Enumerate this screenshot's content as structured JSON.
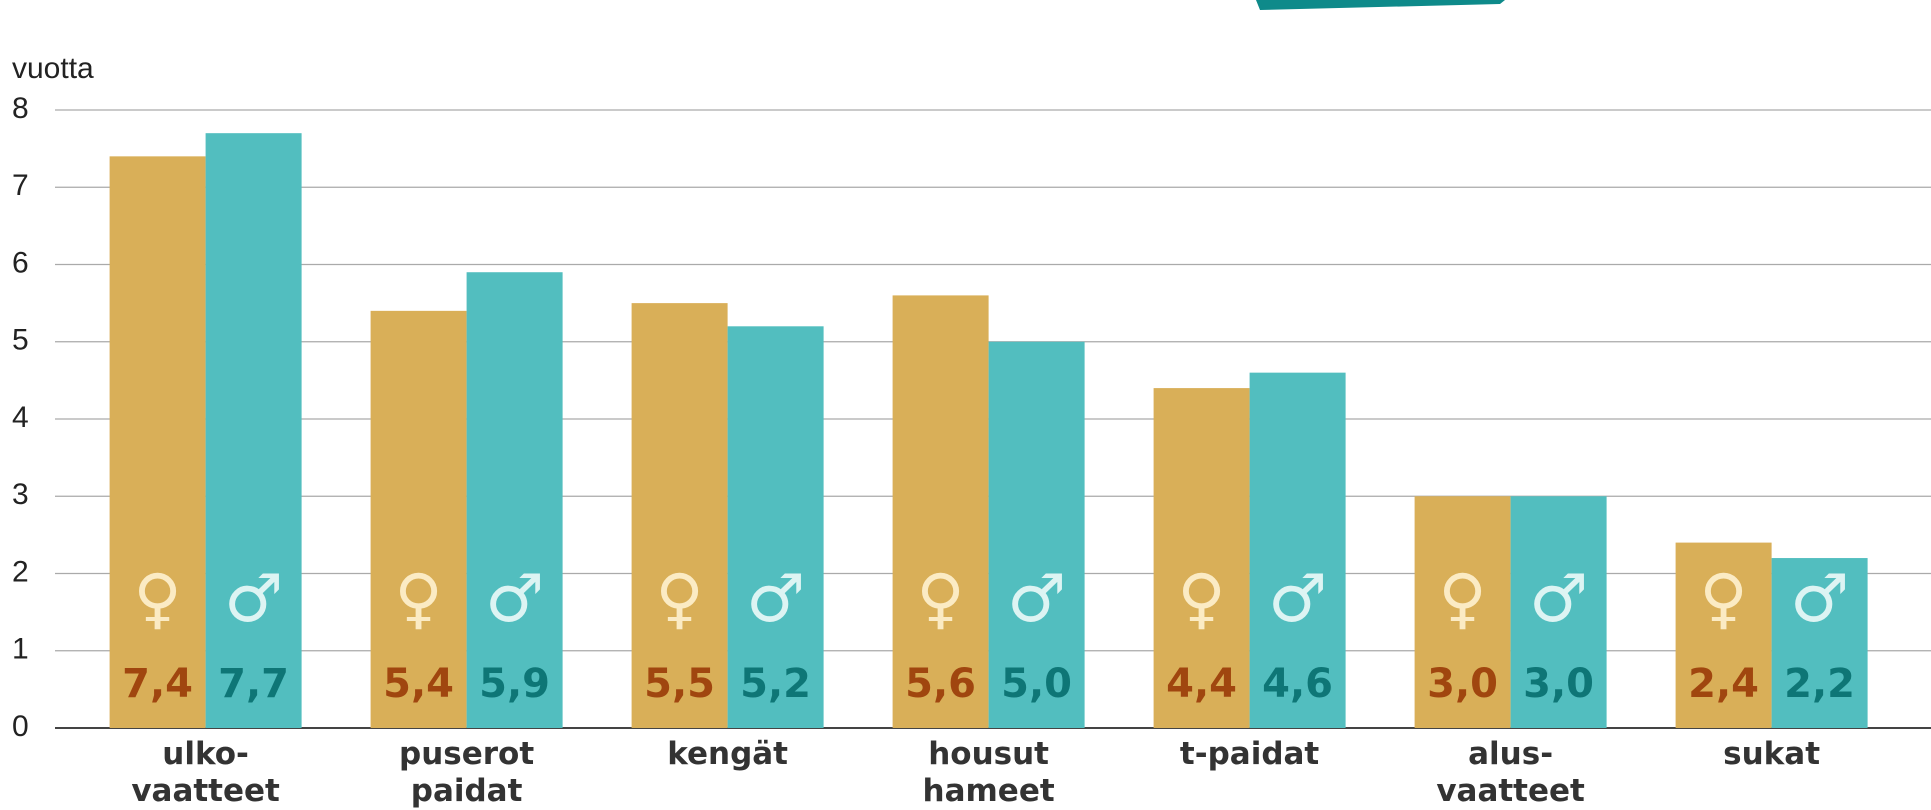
{
  "chart_data": {
    "type": "bar",
    "y_label": "vuotta",
    "categories": [
      "ulko-\nvaatteet",
      "puserot\npaidat",
      "kengät",
      "housut\nhameet",
      "t-paidat",
      "alus-\nvaatteet",
      "sukat"
    ],
    "series": [
      {
        "name": "♀",
        "color": "#D9AF58",
        "label_color": "#A0460F",
        "symbol_color": "#FBEBC4",
        "values": [
          7.4,
          5.4,
          5.5,
          5.6,
          4.4,
          3.0,
          2.4
        ],
        "value_labels": [
          "7,4",
          "5,4",
          "5,5",
          "5,6",
          "4,4",
          "3,0",
          "2,4"
        ]
      },
      {
        "name": "♂",
        "color": "#52BEBF",
        "label_color": "#0E7676",
        "symbol_color": "#DDF4F3",
        "values": [
          7.7,
          5.9,
          5.2,
          5.0,
          4.6,
          3.0,
          2.2
        ],
        "value_labels": [
          "7,7",
          "5,9",
          "5,2",
          "5,0",
          "4,6",
          "3,0",
          "2,2"
        ]
      }
    ],
    "ylim": [
      0,
      8
    ],
    "yticks": [
      0,
      1,
      2,
      3,
      4,
      5,
      6,
      7,
      8
    ],
    "grid": true
  }
}
